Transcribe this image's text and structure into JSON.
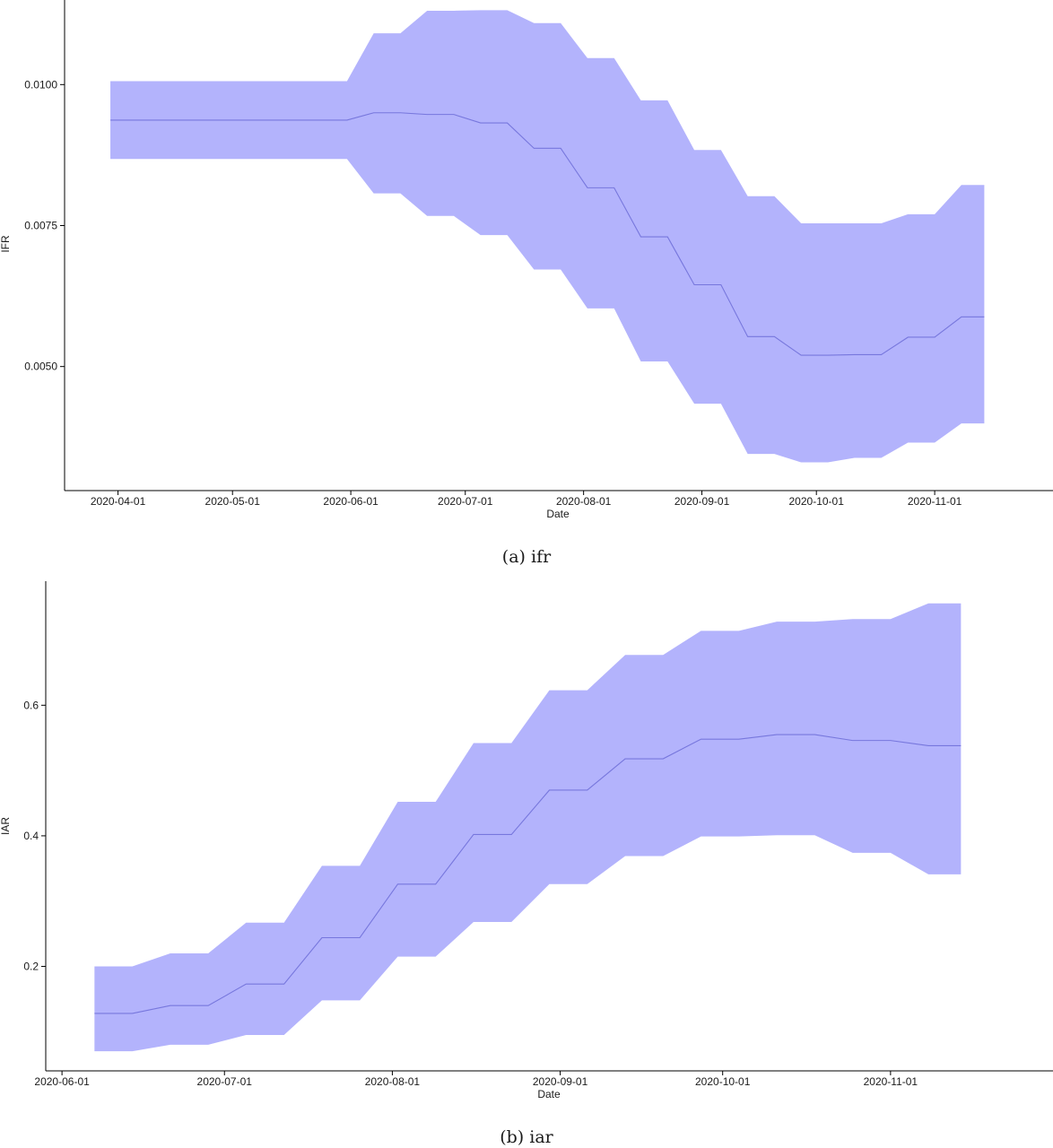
{
  "chart_data": [
    {
      "type": "area",
      "caption": "(a) ifr",
      "title": "",
      "xlabel": "Date",
      "ylabel": "IFR",
      "x_ticks": [
        "2020-04-01",
        "2020-05-01",
        "2020-06-01",
        "2020-07-01",
        "2020-08-01",
        "2020-09-01",
        "2020-10-01",
        "2020-11-01"
      ],
      "y_ticks": [
        0.005,
        0.0075,
        0.01
      ],
      "y_tick_labels": [
        "0.0050",
        "0.0075",
        "0.0100"
      ],
      "xlim": [
        "2020-03-18",
        "2020-12-02"
      ],
      "ylim": [
        0.0028,
        0.0115
      ],
      "grid": false,
      "color": "#b3b3fc",
      "line_color": "#7777dd",
      "series": [
        {
          "x": [
            "2020-03-30",
            "2020-05-31",
            "2020-06-07",
            "2020-06-14",
            "2020-06-21",
            "2020-06-28",
            "2020-07-05",
            "2020-07-12",
            "2020-07-19",
            "2020-07-26",
            "2020-08-02",
            "2020-08-09",
            "2020-08-16",
            "2020-08-23",
            "2020-08-30",
            "2020-09-06",
            "2020-09-13",
            "2020-09-20",
            "2020-09-27",
            "2020-10-04",
            "2020-10-11",
            "2020-10-18",
            "2020-10-25",
            "2020-11-01",
            "2020-11-08",
            "2020-11-14"
          ],
          "median": [
            0.00937,
            0.00937,
            0.0095,
            0.0095,
            0.00947,
            0.00947,
            0.00932,
            0.00932,
            0.00887,
            0.00887,
            0.00817,
            0.00817,
            0.0073,
            0.0073,
            0.00645,
            0.00645,
            0.00553,
            0.00553,
            0.0052,
            0.0052,
            0.00521,
            0.00521,
            0.00552,
            0.00552,
            0.00588,
            0.00588
          ],
          "lower": [
            0.00868,
            0.00868,
            0.00807,
            0.00807,
            0.00767,
            0.00767,
            0.00733,
            0.00733,
            0.00672,
            0.00672,
            0.00603,
            0.00603,
            0.00509,
            0.00509,
            0.00434,
            0.00434,
            0.00345,
            0.00345,
            0.0033,
            0.0033,
            0.00338,
            0.00338,
            0.00365,
            0.00365,
            0.00399,
            0.00399
          ],
          "upper": [
            0.01006,
            0.01006,
            0.01091,
            0.01091,
            0.01131,
            0.01131,
            0.01132,
            0.01132,
            0.01109,
            0.01109,
            0.01047,
            0.01047,
            0.00972,
            0.00972,
            0.00884,
            0.00884,
            0.00802,
            0.00802,
            0.00754,
            0.00754,
            0.00754,
            0.00754,
            0.0077,
            0.0077,
            0.00822,
            0.00822
          ]
        }
      ]
    },
    {
      "type": "area",
      "caption": "(b) iar",
      "title": "",
      "xlabel": "Date",
      "ylabel": "IAR",
      "x_ticks": [
        "2020-06-01",
        "2020-07-01",
        "2020-08-01",
        "2020-09-01",
        "2020-10-01",
        "2020-11-01"
      ],
      "y_ticks": [
        0.2,
        0.4,
        0.6
      ],
      "y_tick_labels": [
        "0.2",
        "0.4",
        "0.6"
      ],
      "xlim": [
        "2020-05-29",
        "2020-12-01"
      ],
      "ylim": [
        0.04,
        0.79
      ],
      "grid": false,
      "color": "#b3b3fc",
      "line_color": "#7777dd",
      "series": [
        {
          "x": [
            "2020-06-07",
            "2020-06-14",
            "2020-06-21",
            "2020-06-28",
            "2020-07-05",
            "2020-07-12",
            "2020-07-19",
            "2020-07-26",
            "2020-08-02",
            "2020-08-09",
            "2020-08-16",
            "2020-08-23",
            "2020-08-30",
            "2020-09-06",
            "2020-09-13",
            "2020-09-20",
            "2020-09-27",
            "2020-10-04",
            "2020-10-11",
            "2020-10-18",
            "2020-10-25",
            "2020-11-01",
            "2020-11-08",
            "2020-11-14"
          ],
          "median": [
            0.128,
            0.128,
            0.14,
            0.14,
            0.173,
            0.173,
            0.244,
            0.244,
            0.326,
            0.326,
            0.402,
            0.402,
            0.47,
            0.47,
            0.518,
            0.518,
            0.548,
            0.548,
            0.555,
            0.555,
            0.546,
            0.546,
            0.538,
            0.538
          ],
          "lower": [
            0.07,
            0.07,
            0.08,
            0.08,
            0.095,
            0.095,
            0.148,
            0.148,
            0.215,
            0.215,
            0.268,
            0.268,
            0.326,
            0.326,
            0.369,
            0.369,
            0.399,
            0.399,
            0.401,
            0.401,
            0.374,
            0.374,
            0.341,
            0.341
          ],
          "upper": [
            0.2,
            0.2,
            0.22,
            0.22,
            0.267,
            0.267,
            0.354,
            0.354,
            0.452,
            0.452,
            0.542,
            0.542,
            0.623,
            0.623,
            0.677,
            0.677,
            0.714,
            0.714,
            0.728,
            0.728,
            0.732,
            0.732,
            0.756,
            0.756
          ]
        }
      ]
    }
  ]
}
